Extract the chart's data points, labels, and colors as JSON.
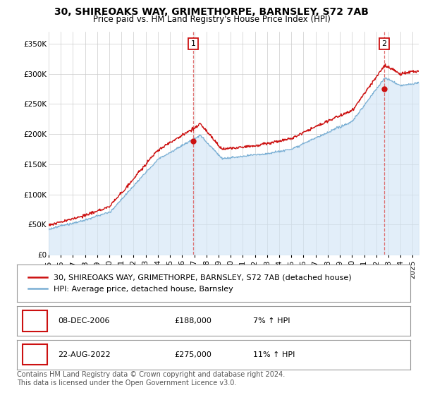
{
  "title": "30, SHIREOAKS WAY, GRIMETHORPE, BARNSLEY, S72 7AB",
  "subtitle": "Price paid vs. HM Land Registry's House Price Index (HPI)",
  "ylabel_ticks": [
    "£0",
    "£50K",
    "£100K",
    "£150K",
    "£200K",
    "£250K",
    "£300K",
    "£350K"
  ],
  "ytick_values": [
    0,
    50000,
    100000,
    150000,
    200000,
    250000,
    300000,
    350000
  ],
  "ylim": [
    0,
    370000
  ],
  "xlim_start": 1995.0,
  "xlim_end": 2025.5,
  "hpi_color": "#7aafd4",
  "hpi_fill_color": "#d0e4f5",
  "price_color": "#cc1111",
  "transaction1_x": 2006.92,
  "transaction1_y": 188000,
  "transaction1_label": "1",
  "transaction2_x": 2022.64,
  "transaction2_y": 275000,
  "transaction2_label": "2",
  "vline_color": "#dd6666",
  "legend_line1": "30, SHIREOAKS WAY, GRIMETHORPE, BARNSLEY, S72 7AB (detached house)",
  "legend_line2": "HPI: Average price, detached house, Barnsley",
  "table_row1": [
    "1",
    "08-DEC-2006",
    "£188,000",
    "7% ↑ HPI"
  ],
  "table_row2": [
    "2",
    "22-AUG-2022",
    "£275,000",
    "11% ↑ HPI"
  ],
  "footer": "Contains HM Land Registry data © Crown copyright and database right 2024.\nThis data is licensed under the Open Government Licence v3.0.",
  "bg_color": "#ffffff",
  "grid_color": "#cccccc",
  "title_fontsize": 10,
  "subtitle_fontsize": 8.5,
  "tick_fontsize": 7.5,
  "legend_fontsize": 8,
  "table_fontsize": 8,
  "footer_fontsize": 7
}
